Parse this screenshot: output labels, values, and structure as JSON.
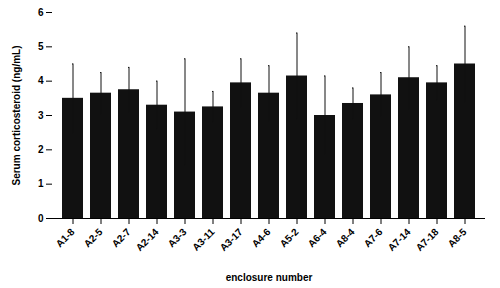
{
  "chart_data": {
    "type": "bar",
    "categories": [
      "A1-8",
      "A2-5",
      "A2-7",
      "A2-14",
      "A3-3",
      "A3-11",
      "A3-17",
      "A4-6",
      "A5-2",
      "A6-4",
      "A8-4",
      "A7-6",
      "A7-14",
      "A7-18",
      "A8-5"
    ],
    "values": [
      3.5,
      3.65,
      3.75,
      3.3,
      3.1,
      3.25,
      3.95,
      3.65,
      4.15,
      3.0,
      3.35,
      3.6,
      4.1,
      3.95,
      4.5
    ],
    "errors": [
      1.0,
      0.6,
      0.65,
      0.7,
      1.55,
      0.45,
      0.7,
      0.8,
      1.25,
      1.15,
      0.45,
      0.65,
      0.9,
      0.5,
      1.1
    ],
    "color": "#111111",
    "xlabel": "enclosure number",
    "ylabel": "Serum corticosteroid (ng/mL)",
    "ylim": [
      0,
      6
    ],
    "yticks": [
      0,
      1,
      2,
      3,
      4,
      5,
      6
    ],
    "grid": false
  }
}
